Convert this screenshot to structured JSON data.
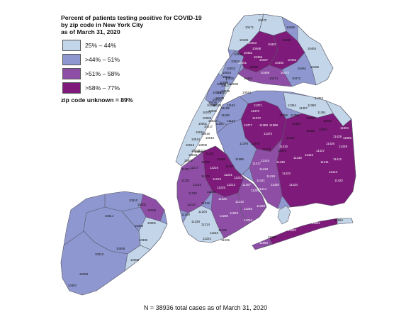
{
  "title": {
    "lines": [
      "Percent of patients testing positive for COVID-19",
      "by zip code in New York City",
      "as of March 31, 2020"
    ]
  },
  "legend": [
    {
      "label": "25% – 44%",
      "color": "#c3d5e8"
    },
    {
      "label": ">44% – 51%",
      "color": "#8e97cf"
    },
    {
      "label": ">51% – 58%",
      "color": "#8f4ea6"
    },
    {
      "label": ">58% – 77%",
      "color": "#7e1a7a"
    }
  ],
  "unknown_note": "zip code unknown = 89%",
  "footnote": "N = 38936 total cases as of March 31, 2020",
  "zip_labels": [
    "10470",
    "10471",
    "10463",
    "10469",
    "10466",
    "10467",
    "10468",
    "10462",
    "10461",
    "10464",
    "10457",
    "10460",
    "10472",
    "10473",
    "10465",
    "10474",
    "10459",
    "10455",
    "10456",
    "10452",
    "10453",
    "10454",
    "10451",
    "10034",
    "10040",
    "10032",
    "10031",
    "10030",
    "10035",
    "10029",
    "10128",
    "10028",
    "10021",
    "10065",
    "10022",
    "10017",
    "10016",
    "10010",
    "10003",
    "10009",
    "10002",
    "10038",
    "10007",
    "10013",
    "10014",
    "10011",
    "10001",
    "10018",
    "10036",
    "10019",
    "10023",
    "10024",
    "10025",
    "10027",
    "10026",
    "10037",
    "10039",
    "10044",
    "11105",
    "11102",
    "11106",
    "11101",
    "11104",
    "11377",
    "11372",
    "11370",
    "11369",
    "11371",
    "11368",
    "11373",
    "11378",
    "11379",
    "11374",
    "11375",
    "11354",
    "11356",
    "11357",
    "11360",
    "11361",
    "11362",
    "11363",
    "11358",
    "11355",
    "11364",
    "11365",
    "11366",
    "11367",
    "11432",
    "11423",
    "11427",
    "11426",
    "11428",
    "11429",
    "11411",
    "11412",
    "11413",
    "11422",
    "11433",
    "11434",
    "11436",
    "11420",
    "11414",
    "11419",
    "11418",
    "11415",
    "11416",
    "11421",
    "11417",
    "11385",
    "11004",
    "11005",
    "11693",
    "11692",
    "11691",
    "11694",
    "11697",
    "11222",
    "11211",
    "11206",
    "11237",
    "11221",
    "11233",
    "11207",
    "11208",
    "11216",
    "11205",
    "11201",
    "11217",
    "11238",
    "11213",
    "11212",
    "11225",
    "11231",
    "11215",
    "11232",
    "11218",
    "11210",
    "11226",
    "11203",
    "11236",
    "11234",
    "11239",
    "11230",
    "11204",
    "11219",
    "11220",
    "11209",
    "11228",
    "11214",
    "11223",
    "11229",
    "11224",
    "11235",
    "10302",
    "10303",
    "10310",
    "10301",
    "10304",
    "10314",
    "10305",
    "10306",
    "10312",
    "10308",
    "10309",
    "10307"
  ]
}
